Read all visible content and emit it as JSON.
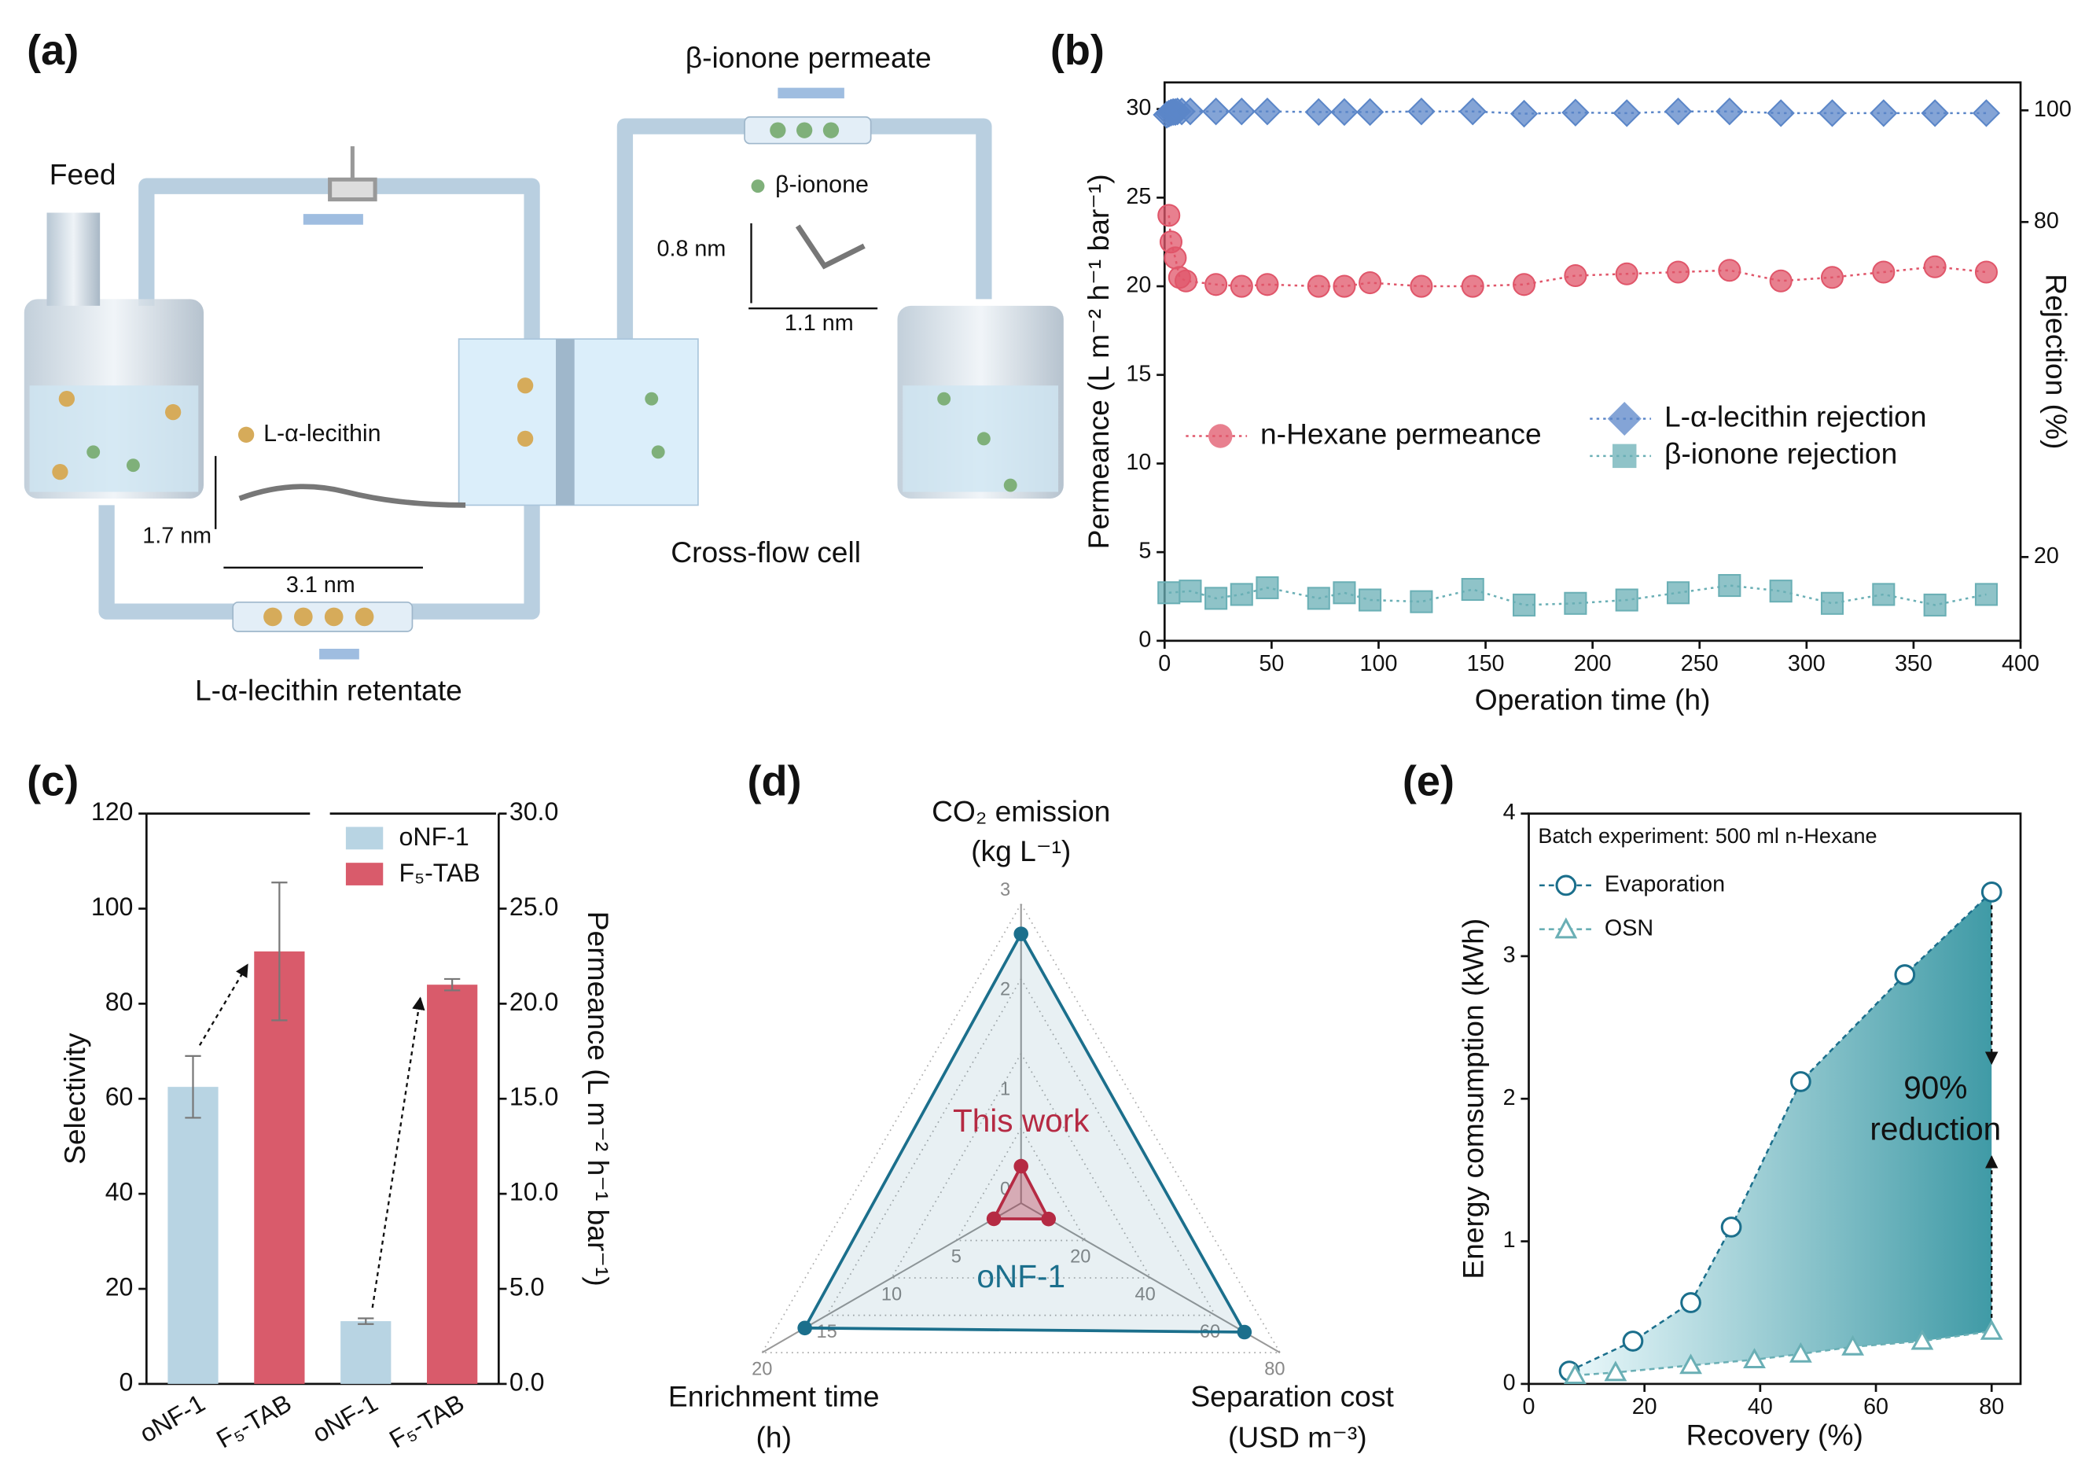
{
  "diagram": {
    "panel": "(a)",
    "feed": "Feed",
    "permeate": "β-ionone permeate",
    "ionone": "β-ionone",
    "ionone_h": "0.8 nm",
    "ionone_w": "1.1 nm",
    "lecithin": "L-α-lecithin",
    "lecithin_h": "1.7 nm",
    "lecithin_w": "3.1 nm",
    "cell": "Cross-flow cell",
    "retentate": "L-α-lecithin retentate"
  },
  "chart_data": [
    {
      "type": "scatter",
      "panel": "(b)",
      "xlabel": "Operation time (h)",
      "ylabel": "Permeance (L m⁻² h⁻¹ bar⁻¹)",
      "y2label": "Rejection (%)",
      "xlim": [
        0,
        400
      ],
      "xticks": [
        0,
        50,
        100,
        150,
        200,
        250,
        300,
        350,
        400
      ],
      "ylim": [
        0,
        31.5
      ],
      "yticks": [
        0,
        5,
        10,
        15,
        20,
        25,
        30
      ],
      "y2lim": [
        5,
        105
      ],
      "y2ticks": [
        20,
        80,
        100
      ],
      "series": [
        {
          "name": "n-Hexane permeance",
          "color": "#e0566a",
          "marker": "circle",
          "x": [
            2,
            3,
            5,
            7,
            10,
            24,
            36,
            48,
            72,
            84,
            96,
            120,
            144,
            168,
            192,
            216,
            240,
            264,
            288,
            312,
            336,
            360,
            384
          ],
          "values": [
            24,
            22.5,
            21.6,
            20.5,
            20.3,
            20.1,
            20,
            20.1,
            20,
            20,
            20.2,
            20,
            20,
            20.1,
            20.6,
            20.7,
            20.8,
            20.9,
            20.3,
            20.5,
            20.8,
            21.1,
            20.8
          ]
        },
        {
          "name": "L-α-lecithin rejection",
          "color": "#5b86c8",
          "marker": "diamond",
          "axis": "y2",
          "x": [
            1,
            2,
            3,
            4,
            5,
            6,
            8,
            12,
            24,
            36,
            48,
            72,
            84,
            96,
            120,
            144,
            168,
            192,
            216,
            240,
            264,
            288,
            312,
            336,
            360,
            384
          ],
          "values": [
            99.2,
            99.4,
            99.6,
            99.7,
            99.7,
            99.8,
            99.8,
            99.8,
            99.8,
            99.8,
            99.8,
            99.7,
            99.7,
            99.7,
            99.8,
            99.8,
            99.4,
            99.6,
            99.5,
            99.8,
            99.8,
            99.5,
            99.5,
            99.5,
            99.5,
            99.5
          ]
        },
        {
          "name": "β-ionone rejection",
          "color": "#6aafb5",
          "marker": "square",
          "axis": "y2",
          "x": [
            2,
            12,
            24,
            36,
            48,
            72,
            84,
            96,
            120,
            144,
            168,
            192,
            216,
            240,
            264,
            288,
            312,
            336,
            360,
            384
          ],
          "values": [
            13.6,
            13.9,
            12.6,
            13.3,
            14.5,
            12.6,
            13.6,
            12.3,
            12.0,
            14.2,
            11.4,
            11.7,
            12.3,
            13.6,
            14.9,
            13.9,
            11.7,
            13.3,
            11.4,
            13.3
          ]
        }
      ]
    },
    {
      "type": "bar",
      "panel": "(c)",
      "categories": [
        "oNF-1",
        "F₅-TAB"
      ],
      "colors": [
        "#b8d4e3",
        "#d95b6b"
      ],
      "groups": [
        {
          "ylabel": "Selectivity",
          "ylim": [
            0,
            120
          ],
          "yticks": [
            0,
            20,
            40,
            60,
            80,
            100,
            120
          ],
          "values": [
            62.5,
            91
          ],
          "errors": [
            6.5,
            14.5
          ]
        },
        {
          "ylabel": "Permeance (L m⁻² h⁻¹ bar⁻¹)",
          "axis": "y2",
          "ylim": [
            0,
            30
          ],
          "yticks": [
            {
              "value": 0,
              "label": "0.0"
            },
            {
              "value": 5,
              "label": "5.0"
            },
            {
              "value": 10,
              "label": "10.0"
            },
            {
              "value": 15,
              "label": "15.0"
            },
            {
              "value": 20,
              "label": "20.0"
            },
            {
              "value": 25,
              "label": "25.0"
            },
            {
              "value": 30,
              "label": "30.0"
            }
          ],
          "values": [
            3.3,
            21
          ],
          "errors": [
            0.15,
            0.3
          ]
        }
      ]
    },
    {
      "type": "radar",
      "panel": "(d)",
      "axes": [
        {
          "label": "CO₂ emission",
          "unit": "(kg L⁻¹)",
          "lim": [
            0,
            3
          ],
          "ticks": [
            0,
            1,
            2,
            3
          ]
        },
        {
          "label": "Enrichment time",
          "unit": "(h)",
          "lim": [
            0,
            20
          ],
          "ticks": [
            5,
            10,
            15,
            20
          ]
        },
        {
          "label": "Separation cost",
          "unit": "(USD m⁻³)",
          "lim": [
            0,
            80
          ],
          "ticks": [
            20,
            40,
            60,
            80
          ]
        }
      ],
      "series": [
        {
          "name": "oNF-1",
          "color": "#1b6f8c",
          "values": [
            2.7,
            16.7,
            69
          ]
        },
        {
          "name": "This work",
          "color": "#b52a43",
          "values": [
            0.37,
            2.1,
            8.5
          ]
        }
      ]
    },
    {
      "type": "line",
      "panel": "(e)",
      "xlabel": "Recovery (%)",
      "ylabel": "Energy comsumption (kWh)",
      "note": "Batch experiment: 500 ml n-Hexane",
      "annotation": [
        "90%",
        "reduction"
      ],
      "xlim": [
        0,
        85
      ],
      "xticks": [
        0,
        20,
        40,
        60,
        80
      ],
      "ylim": [
        0,
        4
      ],
      "yticks": [
        0,
        1,
        2,
        3,
        4
      ],
      "series": [
        {
          "name": "Evaporation",
          "color": "#1b6f8c",
          "marker": "circle",
          "x": [
            7,
            18,
            28,
            35,
            47,
            65,
            80
          ],
          "values": [
            0.09,
            0.3,
            0.57,
            1.1,
            2.12,
            2.87,
            3.45
          ]
        },
        {
          "name": "OSN",
          "color": "#6aafb5",
          "marker": "triangle",
          "x": [
            8,
            15,
            28,
            39,
            47,
            56,
            68,
            80
          ],
          "values": [
            0.06,
            0.08,
            0.13,
            0.17,
            0.21,
            0.26,
            0.3,
            0.37
          ]
        }
      ]
    }
  ]
}
